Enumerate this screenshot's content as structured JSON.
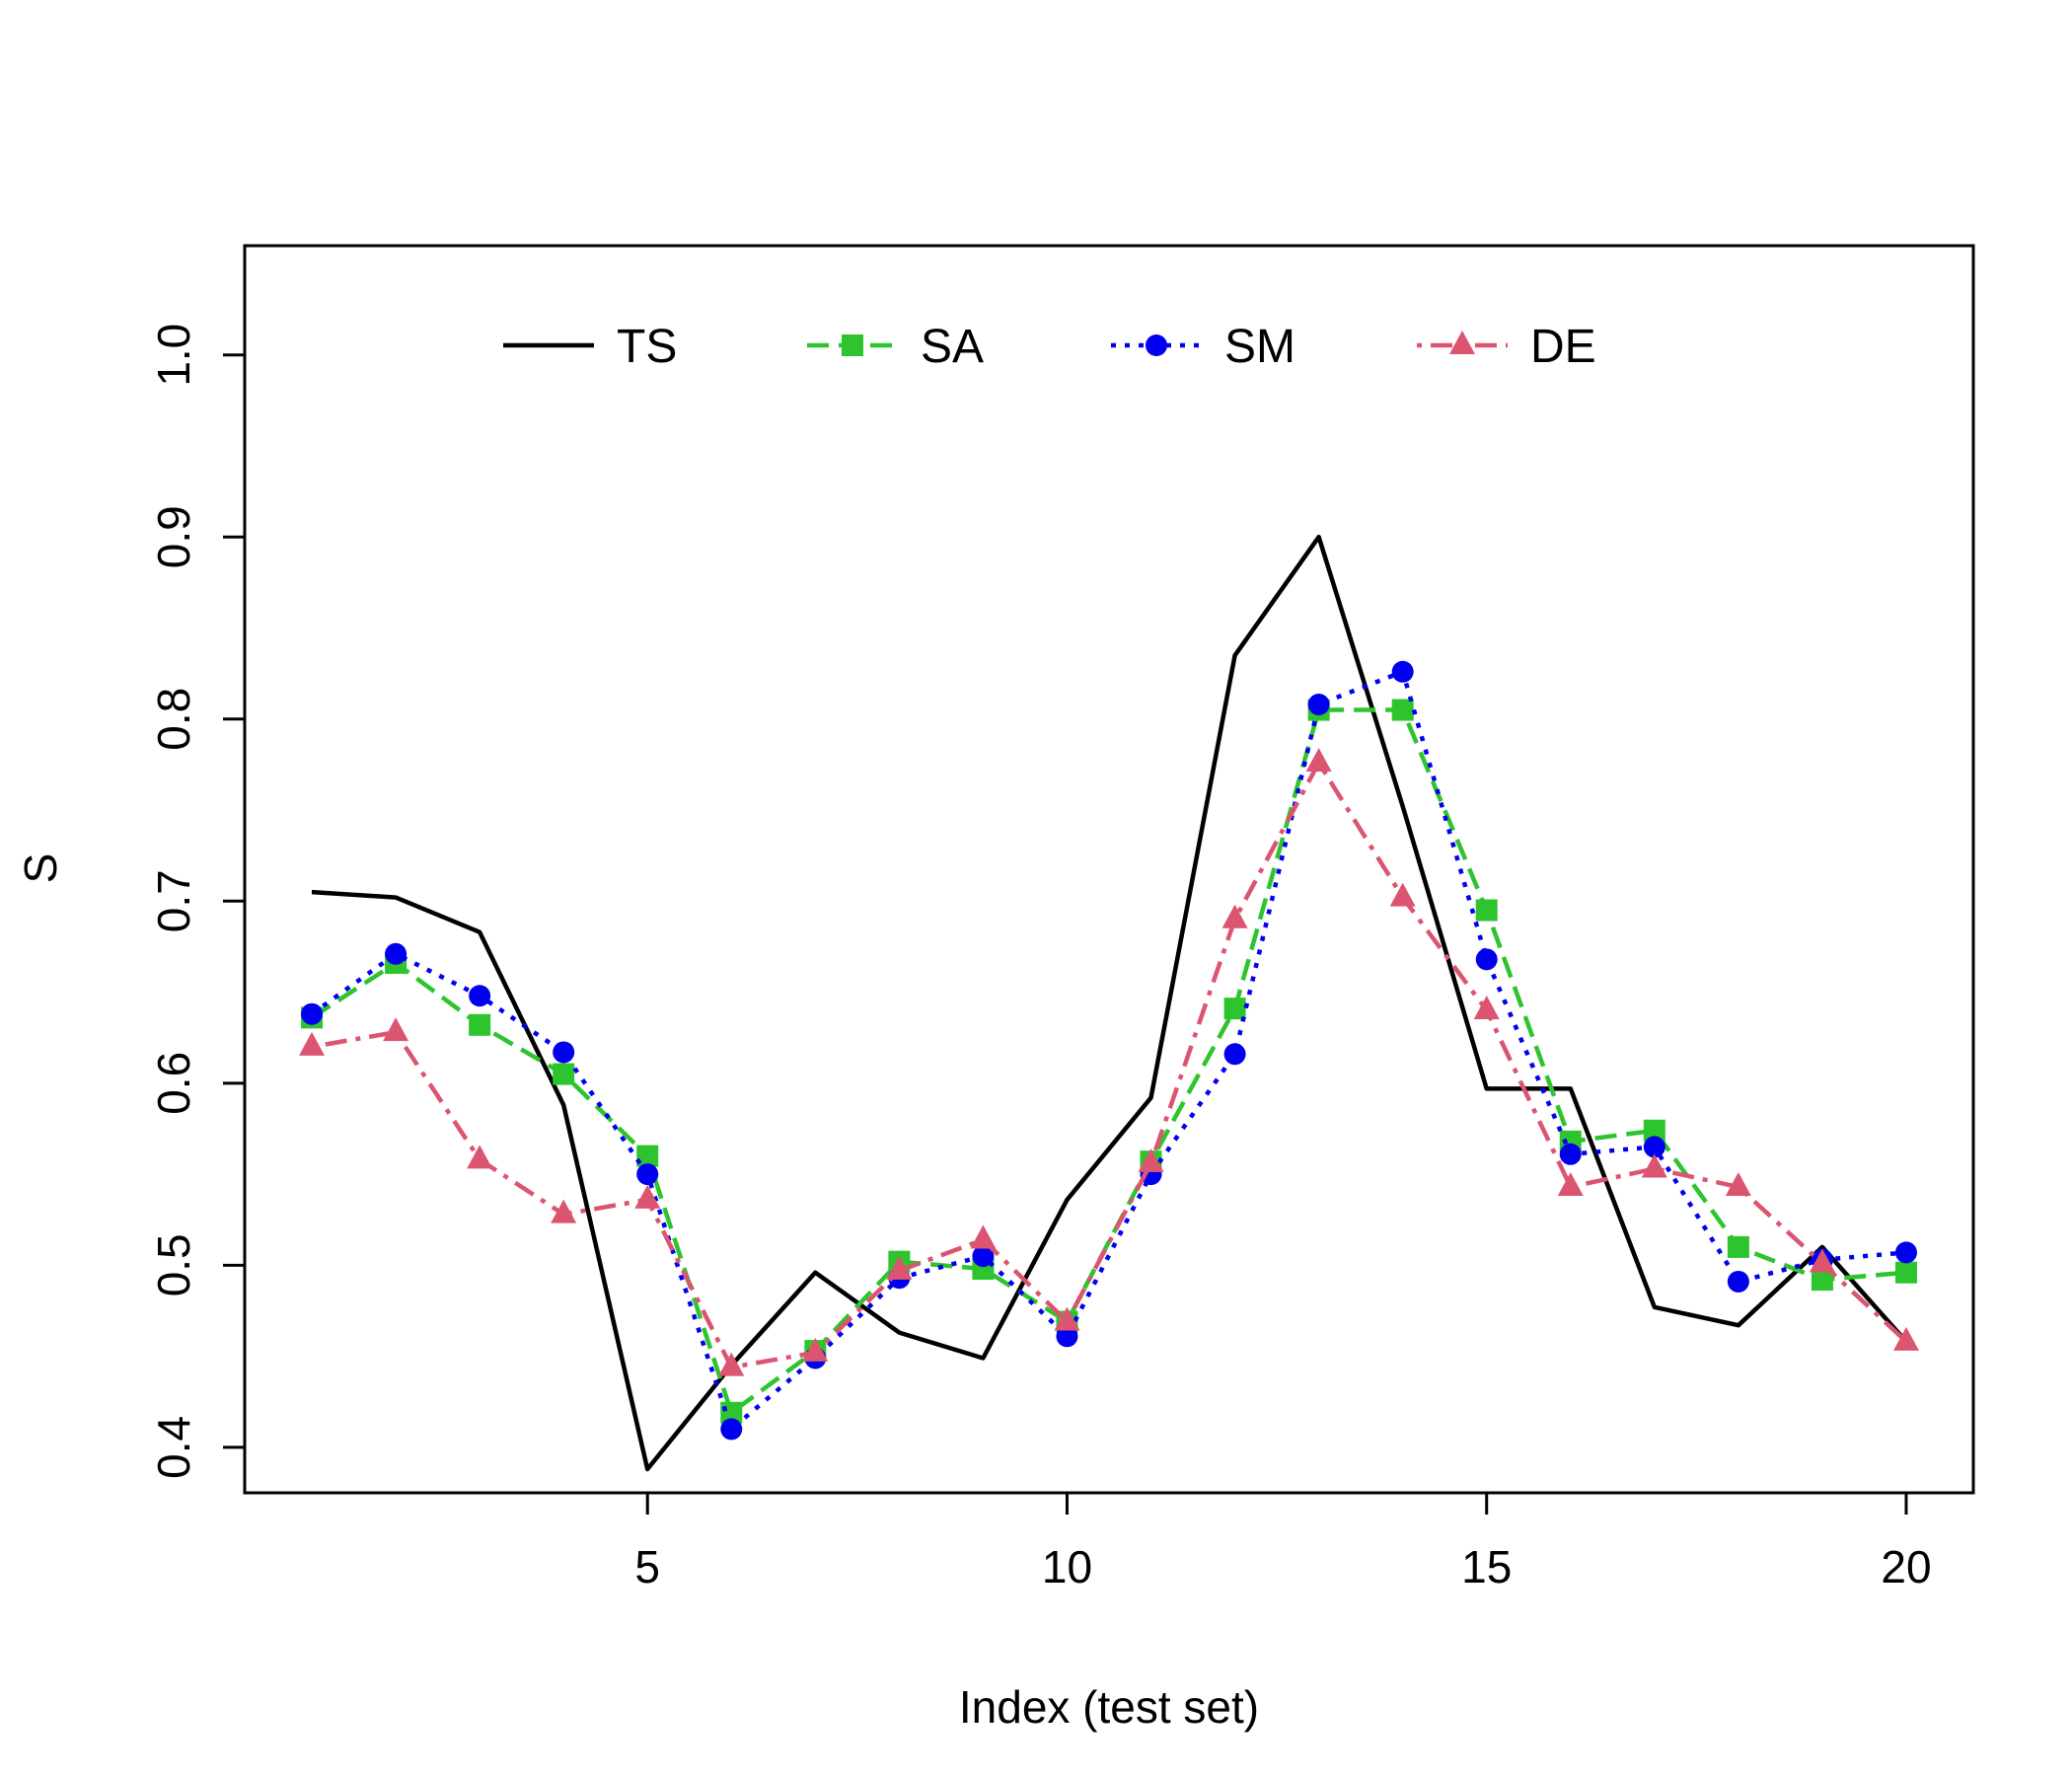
{
  "chart_data": {
    "type": "line",
    "title": "",
    "xlabel": "Index (test set)",
    "ylabel": "S",
    "xlim": [
      0.2,
      20.8
    ],
    "ylim": [
      0.375,
      1.06
    ],
    "xticks": [
      5,
      10,
      15,
      20
    ],
    "yticks": [
      0.4,
      0.5,
      0.6,
      0.7,
      0.8,
      0.9,
      1.0
    ],
    "xtick_labels": [
      "5",
      "10",
      "15",
      "20"
    ],
    "ytick_labels": [
      "0.4",
      "0.5",
      "0.6",
      "0.7",
      "0.8",
      "0.9",
      "1.0"
    ],
    "grid": false,
    "legend_position": "top",
    "x": [
      1,
      2,
      3,
      4,
      5,
      6,
      7,
      8,
      9,
      10,
      11,
      12,
      13,
      14,
      15,
      16,
      17,
      18,
      19,
      20
    ],
    "series": [
      {
        "name": "TS",
        "color": "#000000",
        "line": "solid",
        "marker": "none",
        "values": [
          0.705,
          0.702,
          0.683,
          0.588,
          0.388,
          0.445,
          0.496,
          0.463,
          0.449,
          0.536,
          0.592,
          0.835,
          0.9,
          0.752,
          0.597,
          0.597,
          0.477,
          0.467,
          0.51,
          0.458
        ]
      },
      {
        "name": "SA",
        "color": "#2ec42e",
        "line": "dashed",
        "marker": "square",
        "values": [
          0.636,
          0.666,
          0.632,
          0.605,
          0.56,
          0.419,
          0.453,
          0.502,
          0.498,
          0.469,
          0.557,
          0.641,
          0.805,
          0.805,
          0.695,
          0.568,
          0.574,
          0.51,
          0.492,
          0.496
        ]
      },
      {
        "name": "SM",
        "color": "#0000ee",
        "line": "dotted",
        "marker": "circle",
        "values": [
          0.638,
          0.671,
          0.648,
          0.617,
          0.55,
          0.41,
          0.449,
          0.493,
          0.505,
          0.461,
          0.55,
          0.616,
          0.808,
          0.826,
          0.668,
          0.561,
          0.565,
          0.491,
          0.503,
          0.507
        ]
      },
      {
        "name": "DE",
        "color": "#dc5570",
        "line": "dotdash",
        "marker": "triangle",
        "values": [
          0.62,
          0.628,
          0.558,
          0.528,
          0.536,
          0.444,
          0.452,
          0.497,
          0.514,
          0.469,
          0.556,
          0.69,
          0.776,
          0.702,
          0.64,
          0.543,
          0.553,
          0.543,
          0.501,
          0.458
        ]
      }
    ]
  }
}
